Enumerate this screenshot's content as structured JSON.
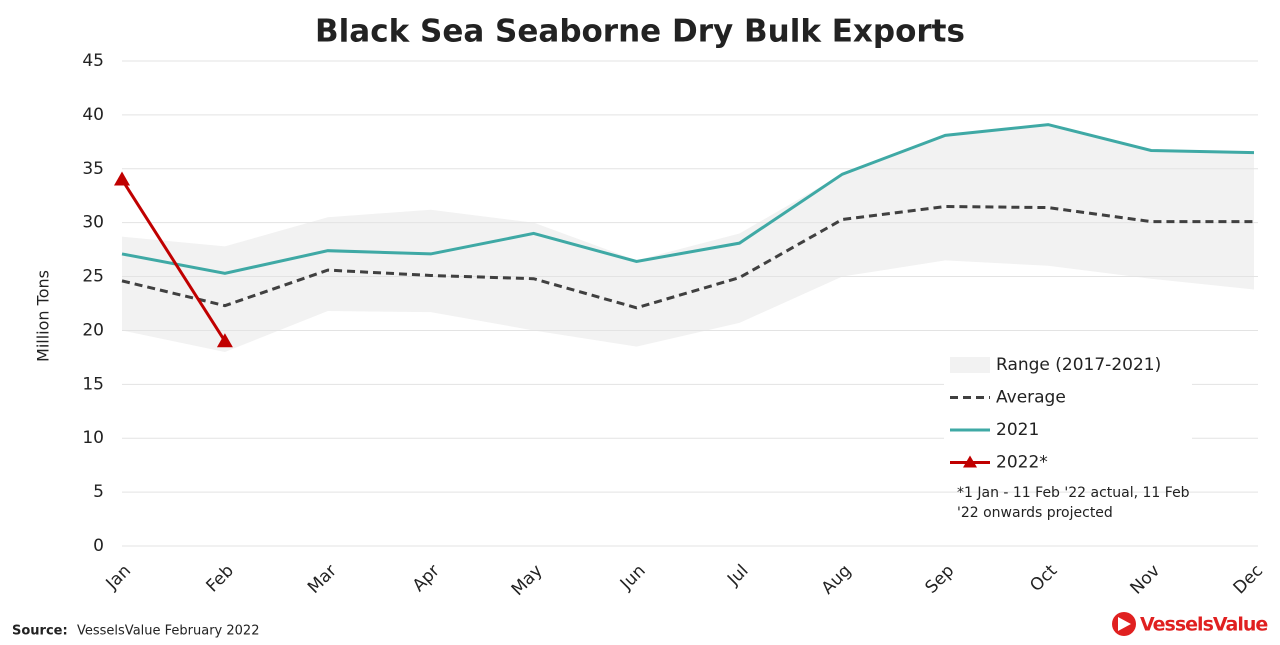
{
  "chart_data": {
    "type": "line",
    "title": "Black Sea Seaborne Dry Bulk Exports",
    "ylabel": "Million Tons",
    "categories": [
      "Jan",
      "Feb",
      "Mar",
      "Apr",
      "May",
      "Jun",
      "Jul",
      "Aug",
      "Sep",
      "Oct",
      "Nov",
      "Dec"
    ],
    "ylim": [
      0,
      45
    ],
    "yticks": [
      0,
      5,
      10,
      15,
      20,
      25,
      30,
      35,
      40,
      45
    ],
    "grid": true,
    "legend": "lower right",
    "range": {
      "name": "Range (2017-2021)",
      "color": "#f2f2f2",
      "high": [
        28.7,
        27.8,
        30.5,
        31.2,
        30,
        26.5,
        29,
        34.5,
        38,
        39,
        36.7,
        36.5
      ],
      "low": [
        20,
        18,
        21.8,
        21.7,
        20,
        18.5,
        20.7,
        25,
        26.5,
        26,
        24.8,
        23.8
      ]
    },
    "series": [
      {
        "name": "Average",
        "color": "#404040",
        "dashed": true,
        "values": [
          24.6,
          22.3,
          25.6,
          25.1,
          24.8,
          22.1,
          24.9,
          30.3,
          31.5,
          31.4,
          30.1,
          30.1
        ]
      },
      {
        "name": "2021",
        "color": "#3fa9a5",
        "values": [
          27.1,
          25.3,
          27.4,
          27.1,
          29,
          26.4,
          28.1,
          34.5,
          38.1,
          39.1,
          36.7,
          36.5
        ]
      },
      {
        "name": "2022*",
        "color": "#c00000",
        "marker": "triangle",
        "values": [
          34,
          19,
          null,
          null,
          null,
          null,
          null,
          null,
          null,
          null,
          null,
          null
        ]
      }
    ],
    "footnote": [
      "*1 Jan - 11 Feb '22 actual, 11 Feb",
      "'22 onwards projected"
    ],
    "source_label": "Source:",
    "source": "VesselsValue February 2022",
    "logo": "VesselsValue"
  }
}
